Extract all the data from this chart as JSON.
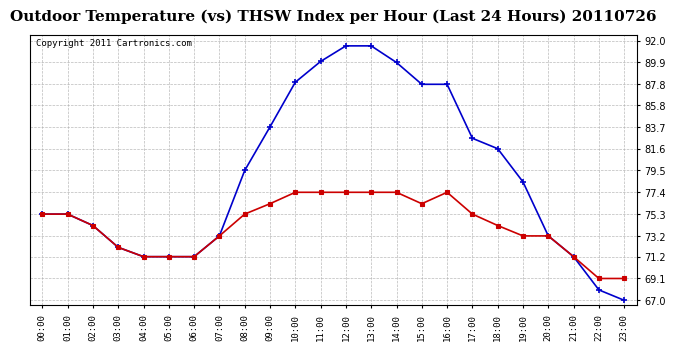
{
  "title": "Outdoor Temperature (vs) THSW Index per Hour (Last 24 Hours) 20110726",
  "copyright": "Copyright 2011 Cartronics.com",
  "x_labels": [
    "00:00",
    "01:00",
    "02:00",
    "03:00",
    "04:00",
    "05:00",
    "06:00",
    "07:00",
    "08:00",
    "09:00",
    "10:00",
    "11:00",
    "12:00",
    "13:00",
    "14:00",
    "15:00",
    "16:00",
    "17:00",
    "18:00",
    "19:00",
    "20:00",
    "21:00",
    "22:00",
    "23:00"
  ],
  "temp_data": [
    75.3,
    75.3,
    74.2,
    72.1,
    71.2,
    71.2,
    71.2,
    73.2,
    75.3,
    76.3,
    77.4,
    77.4,
    77.4,
    77.4,
    77.4,
    76.3,
    77.4,
    75.3,
    74.2,
    73.2,
    73.2,
    71.2,
    69.1,
    69.1
  ],
  "thsw_data": [
    75.3,
    75.3,
    74.2,
    72.1,
    71.2,
    71.2,
    71.2,
    73.2,
    79.5,
    83.7,
    88.0,
    90.0,
    91.5,
    91.5,
    89.9,
    87.8,
    87.8,
    82.6,
    81.6,
    78.4,
    73.2,
    71.2,
    68.0,
    67.0
  ],
  "y_ticks": [
    67.0,
    69.1,
    71.2,
    73.2,
    75.3,
    77.4,
    79.5,
    81.6,
    83.7,
    85.8,
    87.8,
    89.9,
    92.0
  ],
  "y_min": 66.5,
  "y_max": 92.5,
  "temp_color": "#cc0000",
  "thsw_color": "#0000cc",
  "background_color": "#ffffff",
  "grid_color": "#aaaaaa",
  "title_fontsize": 11,
  "copyright_fontsize": 6.5
}
